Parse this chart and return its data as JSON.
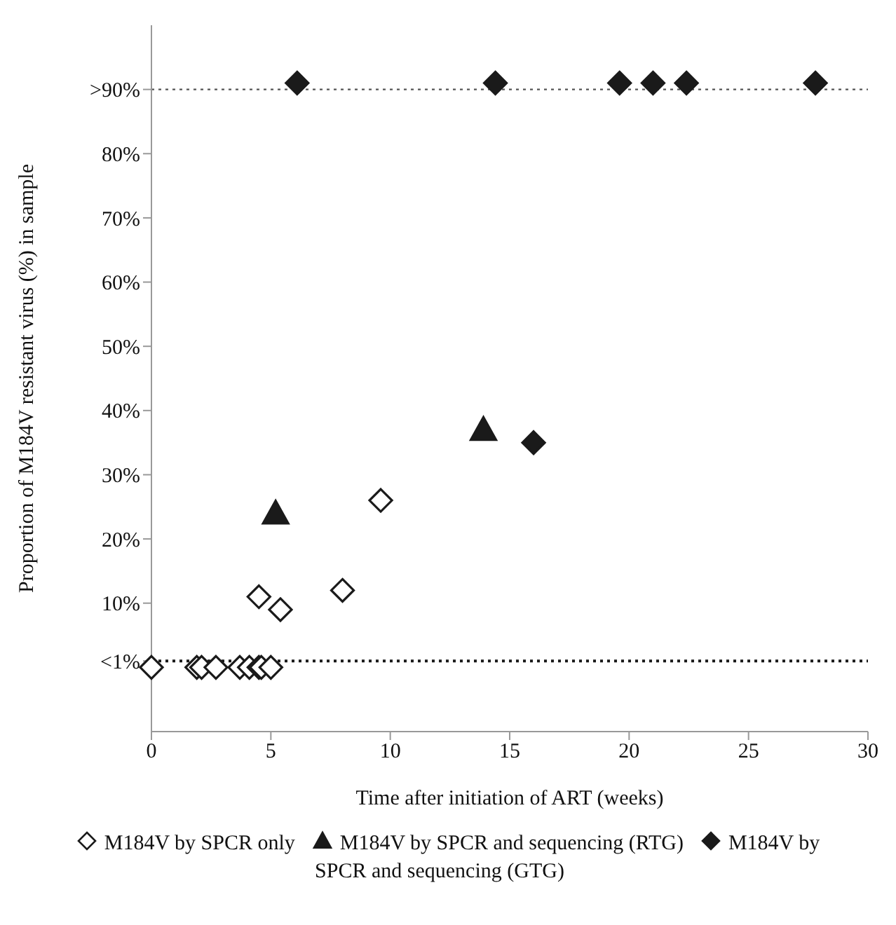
{
  "chart_data": {
    "type": "scatter",
    "xlabel": "Time after initiation of ART (weeks)",
    "ylabel": "Proportion of M184V resistant virus (%) in sample",
    "xlim": [
      0,
      30
    ],
    "xticks": [
      0,
      5,
      10,
      15,
      20,
      25,
      30
    ],
    "ylim": [
      -10,
      100
    ],
    "yticks": [
      {
        "value": 1,
        "label": "<1%"
      },
      {
        "value": 10,
        "label": "10%"
      },
      {
        "value": 20,
        "label": "20%"
      },
      {
        "value": 30,
        "label": "30%"
      },
      {
        "value": 40,
        "label": "40%"
      },
      {
        "value": 50,
        "label": "50%"
      },
      {
        "value": 60,
        "label": "60%"
      },
      {
        "value": 70,
        "label": "70%"
      },
      {
        "value": 80,
        "label": "80%"
      },
      {
        "value": 90,
        "label": ">90%"
      }
    ],
    "grid": false,
    "legend": "bottom",
    "ref_lines": [
      {
        "axis": "y",
        "value": 1,
        "line_style": "dotted",
        "color": "#1a1a1a"
      },
      {
        "axis": "y",
        "value": 90,
        "line_style": "dotted",
        "color": "#555555"
      }
    ],
    "series": [
      {
        "name": "M184V by SPCR only",
        "color": "#1a1a1a",
        "marker": "diamond-open",
        "x": [
          0,
          1.9,
          2.1,
          2.7,
          3.7,
          4.1,
          4.5,
          4.6,
          5.0,
          4.5,
          5.4,
          8.0,
          9.6
        ],
        "values": [
          0,
          0,
          0,
          0,
          0,
          0,
          0,
          0,
          0,
          11,
          9,
          12,
          26
        ]
      },
      {
        "name": "M184V by SPCR and sequencing (RTG)",
        "color": "#1a1a1a",
        "marker": "triangle",
        "x": [
          5.2,
          13.9
        ],
        "values": [
          24,
          37
        ]
      },
      {
        "name": "M184V by SPCR and sequencing (GTG)",
        "color": "#1a1a1a",
        "marker": "diamond",
        "x": [
          6.1,
          14.4,
          16.0,
          19.6,
          21.0,
          22.4,
          27.8
        ],
        "values": [
          91,
          91,
          35,
          91,
          91,
          91,
          91
        ]
      }
    ]
  }
}
